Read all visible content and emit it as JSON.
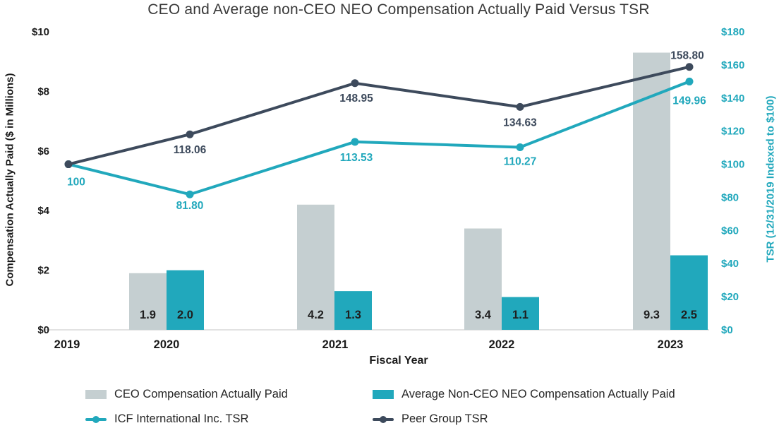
{
  "chart_data": {
    "type": "combo-bar-line",
    "title": "CEO and Average non-CEO NEO Compensation Actually Paid Versus TSR",
    "xlabel": "Fiscal Year",
    "categories": [
      "2019",
      "2020",
      "2021",
      "2022",
      "2023"
    ],
    "grid": "off",
    "legend_position": "bottom",
    "axis_line_color": "#D9D9D9",
    "left_axis": {
      "label": "Compensation Actually Paid ($ in Millions)",
      "range": [
        0,
        10
      ],
      "tick_values": [
        0,
        2,
        4,
        6,
        8,
        10
      ],
      "tick_labels": [
        "$0",
        "$2",
        "$4",
        "$6",
        "$8",
        "$10"
      ],
      "color": "#1A1A1A"
    },
    "right_axis": {
      "label": "TSR (12/31/2019 Indexed to $100)",
      "range": [
        0,
        180
      ],
      "tick_values": [
        0,
        20,
        40,
        60,
        80,
        100,
        120,
        140,
        160,
        180
      ],
      "tick_labels": [
        "$0",
        "$20",
        "$40",
        "$60",
        "$80",
        "$100",
        "$120",
        "$140",
        "$160",
        "$180"
      ],
      "color": "#21A8BC"
    },
    "bar_series": [
      {
        "name": "CEO Compensation Actually Paid",
        "color": "#C5CFD1",
        "values": [
          null,
          1.9,
          4.2,
          3.4,
          9.3
        ],
        "labels": [
          "",
          "1.9",
          "4.2",
          "3.4",
          "9.3"
        ]
      },
      {
        "name": "Average Non-CEO NEO Compensation Actually Paid",
        "color": "#21A8BC",
        "values": [
          null,
          2.0,
          1.3,
          1.1,
          2.5
        ],
        "labels": [
          "",
          "2.0",
          "1.3",
          "1.1",
          "2.5"
        ]
      }
    ],
    "line_series": [
      {
        "name": "ICF International Inc. TSR",
        "color": "#21A8BC",
        "values": [
          100,
          81.8,
          113.53,
          110.27,
          149.96
        ],
        "labels": [
          "100",
          "81.80",
          "113.53",
          "110.27",
          "149.96"
        ]
      },
      {
        "name": "Peer Group TSR",
        "color": "#3D4A5C",
        "values": [
          100,
          118.06,
          148.95,
          134.63,
          158.8
        ],
        "labels": [
          "",
          "118.06",
          "148.95",
          "134.63",
          "158.80"
        ]
      }
    ]
  }
}
